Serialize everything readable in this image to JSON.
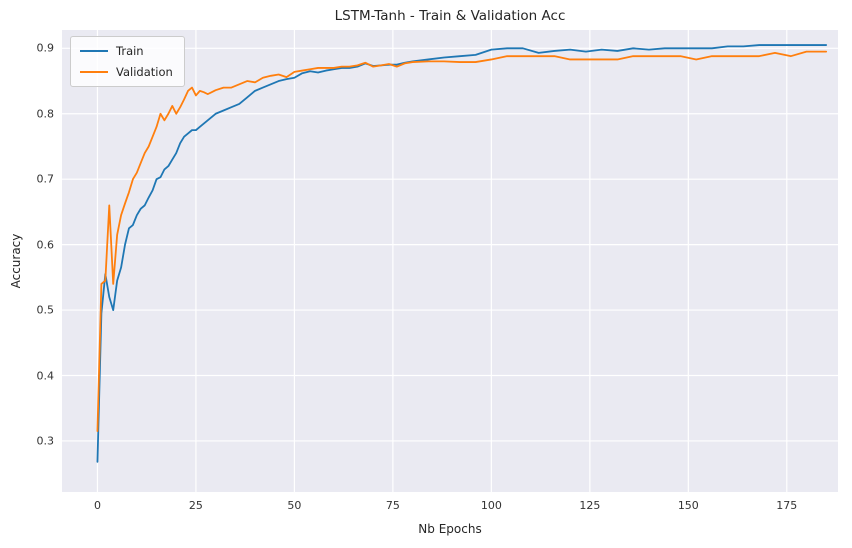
{
  "chart_data": {
    "type": "line",
    "title": "LSTM-Tanh - Train & Validation Acc",
    "xlabel": "Nb Epochs",
    "ylabel": "Accuracy",
    "xlim": [
      -9,
      188
    ],
    "ylim": [
      0.222,
      0.928
    ],
    "x_ticks": [
      0,
      25,
      50,
      75,
      100,
      125,
      150,
      175
    ],
    "y_ticks": [
      0.3,
      0.4,
      0.5,
      0.6,
      0.7,
      0.8,
      0.9
    ],
    "grid": true,
    "legend_position": "upper left",
    "background_color": "#eaeaf2",
    "grid_color": "#ffffff",
    "x": [
      0,
      1,
      2,
      3,
      4,
      5,
      6,
      7,
      8,
      9,
      10,
      11,
      12,
      13,
      14,
      15,
      16,
      17,
      18,
      19,
      20,
      21,
      22,
      23,
      24,
      25,
      26,
      27,
      28,
      29,
      30,
      32,
      34,
      36,
      38,
      40,
      42,
      44,
      46,
      48,
      50,
      52,
      54,
      56,
      58,
      60,
      62,
      64,
      66,
      68,
      70,
      72,
      74,
      76,
      78,
      80,
      84,
      88,
      92,
      96,
      100,
      104,
      108,
      112,
      116,
      120,
      124,
      128,
      132,
      136,
      140,
      144,
      148,
      152,
      156,
      160,
      164,
      168,
      172,
      176,
      180,
      185
    ],
    "series": [
      {
        "name": "Train",
        "color": "#1f77b4",
        "values": [
          0.268,
          0.495,
          0.555,
          0.52,
          0.5,
          0.545,
          0.565,
          0.6,
          0.625,
          0.63,
          0.645,
          0.655,
          0.66,
          0.672,
          0.683,
          0.7,
          0.703,
          0.715,
          0.72,
          0.73,
          0.74,
          0.755,
          0.765,
          0.77,
          0.775,
          0.775,
          0.78,
          0.785,
          0.79,
          0.795,
          0.8,
          0.805,
          0.81,
          0.815,
          0.825,
          0.835,
          0.84,
          0.845,
          0.85,
          0.853,
          0.855,
          0.862,
          0.865,
          0.863,
          0.866,
          0.868,
          0.87,
          0.87,
          0.872,
          0.877,
          0.873,
          0.874,
          0.875,
          0.875,
          0.878,
          0.88,
          0.883,
          0.886,
          0.888,
          0.89,
          0.898,
          0.9,
          0.9,
          0.893,
          0.896,
          0.898,
          0.895,
          0.898,
          0.896,
          0.9,
          0.898,
          0.9,
          0.9,
          0.9,
          0.9,
          0.903,
          0.903,
          0.905,
          0.905,
          0.905,
          0.905,
          0.905
        ]
      },
      {
        "name": "Validation",
        "color": "#ff7f0e",
        "values": [
          0.315,
          0.54,
          0.545,
          0.66,
          0.54,
          0.615,
          0.645,
          0.663,
          0.68,
          0.7,
          0.71,
          0.725,
          0.74,
          0.75,
          0.765,
          0.78,
          0.8,
          0.79,
          0.8,
          0.812,
          0.8,
          0.81,
          0.822,
          0.835,
          0.84,
          0.828,
          0.835,
          0.833,
          0.83,
          0.833,
          0.836,
          0.84,
          0.84,
          0.845,
          0.85,
          0.848,
          0.855,
          0.858,
          0.86,
          0.856,
          0.864,
          0.866,
          0.868,
          0.87,
          0.87,
          0.87,
          0.872,
          0.872,
          0.874,
          0.878,
          0.872,
          0.874,
          0.876,
          0.872,
          0.877,
          0.879,
          0.88,
          0.88,
          0.879,
          0.879,
          0.883,
          0.888,
          0.888,
          0.888,
          0.888,
          0.883,
          0.883,
          0.883,
          0.883,
          0.888,
          0.888,
          0.888,
          0.888,
          0.883,
          0.888,
          0.888,
          0.888,
          0.888,
          0.893,
          0.888,
          0.895,
          0.895
        ]
      }
    ]
  }
}
